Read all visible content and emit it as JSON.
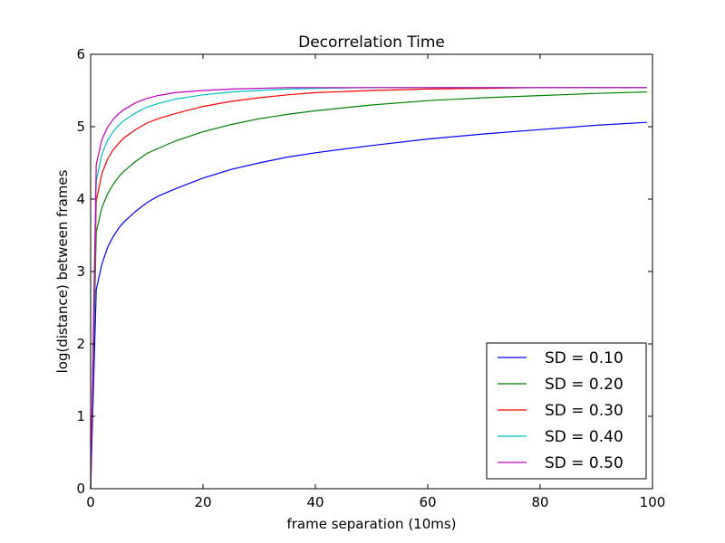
{
  "chart_data": {
    "type": "line",
    "title": "Decorrelation Time",
    "xlabel": "frame separation (10ms)",
    "ylabel": "log(distance) between frames",
    "xlim": [
      0,
      100
    ],
    "ylim": [
      0,
      6
    ],
    "xticks": [
      0,
      20,
      40,
      60,
      80,
      100
    ],
    "yticks": [
      0,
      1,
      2,
      3,
      4,
      5,
      6
    ],
    "grid": false,
    "legend_position": "lower-right",
    "x": [
      0,
      1,
      2,
      3,
      4,
      5,
      6,
      8,
      10,
      12,
      15,
      20,
      25,
      30,
      35,
      40,
      50,
      60,
      70,
      80,
      90,
      99
    ],
    "series": [
      {
        "name": "SD = 0.10",
        "color": "#0000ff",
        "values": [
          0.0,
          2.75,
          3.1,
          3.33,
          3.48,
          3.6,
          3.69,
          3.83,
          3.95,
          4.04,
          4.14,
          4.29,
          4.41,
          4.5,
          4.58,
          4.64,
          4.74,
          4.83,
          4.9,
          4.96,
          5.02,
          5.06
        ]
      },
      {
        "name": "SD = 0.20",
        "color": "#008000",
        "values": [
          0.0,
          3.55,
          3.88,
          4.07,
          4.2,
          4.31,
          4.39,
          4.52,
          4.63,
          4.7,
          4.8,
          4.93,
          5.03,
          5.11,
          5.17,
          5.22,
          5.3,
          5.36,
          5.4,
          5.43,
          5.46,
          5.48
        ]
      },
      {
        "name": "SD = 0.30",
        "color": "#ff0000",
        "values": [
          0.0,
          3.97,
          4.35,
          4.55,
          4.68,
          4.77,
          4.85,
          4.96,
          5.05,
          5.11,
          5.18,
          5.28,
          5.35,
          5.4,
          5.44,
          5.47,
          5.5,
          5.52,
          5.53,
          5.54,
          5.54,
          5.54
        ]
      },
      {
        "name": "SD = 0.40",
        "color": "#00bfbf",
        "values": [
          0.0,
          4.25,
          4.62,
          4.81,
          4.93,
          5.02,
          5.09,
          5.19,
          5.27,
          5.32,
          5.38,
          5.44,
          5.48,
          5.5,
          5.52,
          5.53,
          5.54,
          5.54,
          5.54,
          5.54,
          5.54,
          5.54
        ]
      },
      {
        "name": "SD = 0.50",
        "color": "#bf00bf",
        "values": [
          0.0,
          4.48,
          4.82,
          4.99,
          5.1,
          5.18,
          5.24,
          5.33,
          5.39,
          5.43,
          5.47,
          5.5,
          5.52,
          5.53,
          5.54,
          5.54,
          5.54,
          5.54,
          5.54,
          5.54,
          5.54,
          5.54
        ]
      }
    ]
  }
}
